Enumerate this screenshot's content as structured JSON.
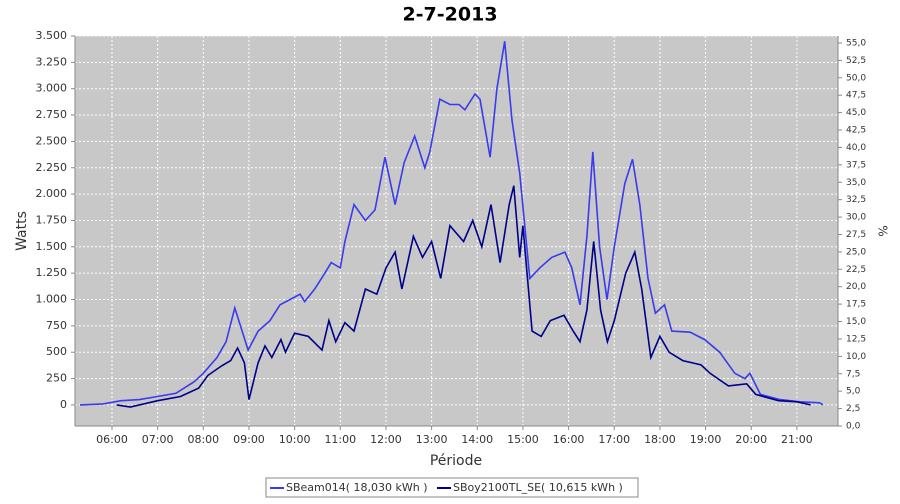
{
  "chart_data": {
    "type": "line",
    "title": "2-7-2013",
    "xlabel": "Période",
    "ylabel": "Watts",
    "y2label": "%",
    "grid": true,
    "legend": "bottom",
    "xlim": [
      5.19,
      21.9
    ],
    "xticks": [
      {
        "value": 6,
        "label": "06:00"
      },
      {
        "value": 7,
        "label": "07:00"
      },
      {
        "value": 8,
        "label": "08:00"
      },
      {
        "value": 9,
        "label": "09:00"
      },
      {
        "value": 10,
        "label": "10:00"
      },
      {
        "value": 11,
        "label": "11:00"
      },
      {
        "value": 12,
        "label": "12:00"
      },
      {
        "value": 13,
        "label": "13:00"
      },
      {
        "value": 14,
        "label": "14:00"
      },
      {
        "value": 15,
        "label": "15:00"
      },
      {
        "value": 16,
        "label": "16:00"
      },
      {
        "value": 17,
        "label": "17:00"
      },
      {
        "value": 18,
        "label": "18:00"
      },
      {
        "value": 19,
        "label": "19:00"
      },
      {
        "value": 20,
        "label": "20:00"
      },
      {
        "value": 21,
        "label": "21:00"
      }
    ],
    "ylim": [
      -200,
      3500
    ],
    "yticks": [
      0,
      250,
      500,
      750,
      {
        "value": 1000,
        "label": "1.000"
      },
      {
        "value": 1250,
        "label": "1.250"
      },
      {
        "value": 1500,
        "label": "1.500"
      },
      {
        "value": 1750,
        "label": "1.750"
      },
      {
        "value": 2000,
        "label": "2.000"
      },
      {
        "value": 2250,
        "label": "2.250"
      },
      {
        "value": 2500,
        "label": "2.500"
      },
      {
        "value": 2750,
        "label": "2.750"
      },
      {
        "value": 3000,
        "label": "3.000"
      },
      {
        "value": 3250,
        "label": "3.250"
      },
      {
        "value": 3500,
        "label": "3.500"
      }
    ],
    "y2lim": [
      0,
      56
    ],
    "y2ticks": [
      {
        "value": 0,
        "label": "0,0"
      },
      {
        "value": 2.5,
        "label": "2,5"
      },
      {
        "value": 5,
        "label": "5,0"
      },
      {
        "value": 7.5,
        "label": "7,5"
      },
      {
        "value": 10,
        "label": "10,0"
      },
      {
        "value": 12.5,
        "label": "12,5"
      },
      {
        "value": 15,
        "label": "15,0"
      },
      {
        "value": 17.5,
        "label": "17,5"
      },
      {
        "value": 20,
        "label": "20,0"
      },
      {
        "value": 22.5,
        "label": "22,5"
      },
      {
        "value": 25,
        "label": "25,0"
      },
      {
        "value": 27.5,
        "label": "27,5"
      },
      {
        "value": 30,
        "label": "30,0"
      },
      {
        "value": 32.5,
        "label": "32,5"
      },
      {
        "value": 35,
        "label": "35,0"
      },
      {
        "value": 37.5,
        "label": "37,5"
      },
      {
        "value": 40,
        "label": "40,0"
      },
      {
        "value": 42.5,
        "label": "42,5"
      },
      {
        "value": 45,
        "label": "45,0"
      },
      {
        "value": 47.5,
        "label": "47,5"
      },
      {
        "value": 50,
        "label": "50,0"
      },
      {
        "value": 52.5,
        "label": "52,5"
      },
      {
        "value": 55,
        "label": "55,0"
      }
    ],
    "series": [
      {
        "name": "SBeam014( 18,030 kWh )",
        "color": "#3a3aee",
        "x": [
          5.3,
          5.8,
          6.2,
          6.6,
          7.0,
          7.4,
          7.8,
          8.0,
          8.3,
          8.5,
          8.69,
          8.98,
          9.2,
          9.46,
          9.68,
          9.9,
          10.12,
          10.22,
          10.44,
          10.66,
          10.8,
          11.0,
          11.1,
          11.3,
          11.55,
          11.76,
          11.98,
          12.2,
          12.4,
          12.63,
          12.85,
          12.96,
          13.18,
          13.4,
          13.6,
          13.73,
          13.95,
          14.06,
          14.28,
          14.43,
          14.6,
          14.76,
          14.93,
          15.15,
          15.37,
          15.63,
          15.92,
          16.07,
          16.25,
          16.4,
          16.53,
          16.68,
          16.84,
          17.0,
          17.23,
          17.4,
          17.56,
          17.74,
          17.9,
          18.1,
          18.26,
          18.66,
          18.98,
          19.31,
          19.64,
          19.86,
          19.97,
          20.2,
          20.63,
          21.07,
          21.5,
          21.57
        ],
        "values": [
          0,
          10,
          40,
          50,
          80,
          110,
          220,
          300,
          450,
          600,
          920,
          520,
          700,
          800,
          950,
          1000,
          1050,
          980,
          1100,
          1250,
          1350,
          1300,
          1550,
          1900,
          1750,
          1850,
          2350,
          1900,
          2300,
          2550,
          2250,
          2400,
          2900,
          2850,
          2850,
          2800,
          2950,
          2900,
          2350,
          3000,
          3450,
          2700,
          2200,
          1200,
          1300,
          1400,
          1450,
          1300,
          950,
          1600,
          2400,
          1500,
          1000,
          1500,
          2100,
          2330,
          1900,
          1200,
          870,
          950,
          700,
          690,
          620,
          500,
          300,
          250,
          300,
          100,
          50,
          30,
          20,
          0
        ]
      },
      {
        "name": "SBoy2100TL_SE( 10,615 kWh )",
        "color": "#00008b",
        "x": [
          6.1,
          6.4,
          7.0,
          7.5,
          7.9,
          8.1,
          8.4,
          8.6,
          8.75,
          8.9,
          9.0,
          9.2,
          9.35,
          9.5,
          9.7,
          9.8,
          10.0,
          10.3,
          10.6,
          10.75,
          10.9,
          11.1,
          11.3,
          11.55,
          11.8,
          12.0,
          12.2,
          12.35,
          12.6,
          12.8,
          13.0,
          13.2,
          13.4,
          13.7,
          13.9,
          14.1,
          14.3,
          14.5,
          14.7,
          14.8,
          14.93,
          15.0,
          15.2,
          15.4,
          15.6,
          15.9,
          16.1,
          16.25,
          16.4,
          16.55,
          16.7,
          16.85,
          17.0,
          17.25,
          17.45,
          17.6,
          17.8,
          18.0,
          18.2,
          18.5,
          18.9,
          19.1,
          19.5,
          19.9,
          20.1,
          20.6,
          21.0,
          21.3
        ],
        "values": [
          0,
          -20,
          40,
          80,
          160,
          280,
          370,
          420,
          540,
          400,
          50,
          400,
          560,
          450,
          620,
          500,
          680,
          650,
          520,
          800,
          600,
          780,
          700,
          1100,
          1050,
          1300,
          1450,
          1100,
          1600,
          1400,
          1550,
          1200,
          1700,
          1550,
          1750,
          1500,
          1900,
          1350,
          1900,
          2080,
          1400,
          1700,
          700,
          650,
          800,
          850,
          700,
          600,
          900,
          1550,
          900,
          600,
          800,
          1250,
          1450,
          1100,
          450,
          650,
          500,
          420,
          380,
          300,
          180,
          200,
          100,
          40,
          30,
          0
        ]
      }
    ]
  }
}
